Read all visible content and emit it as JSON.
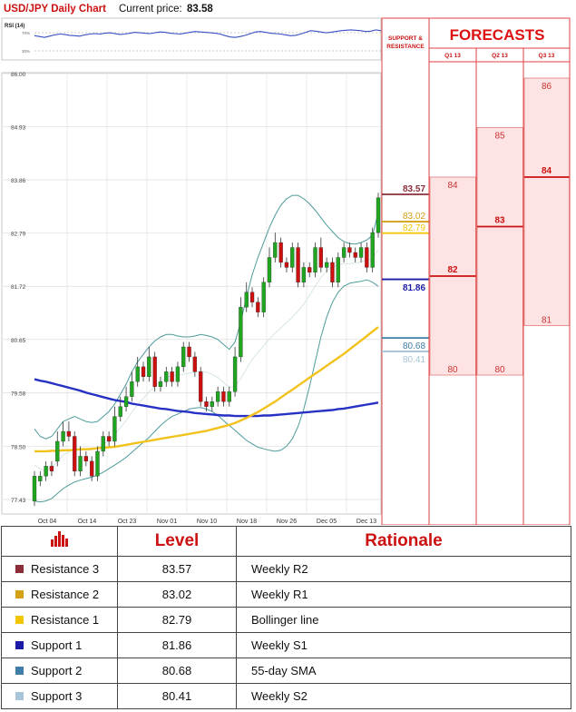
{
  "header": {
    "title": "USD/JPY Daily Chart",
    "current_label": "Current price:",
    "current_value": "83.58"
  },
  "rsi": {
    "label": "RSI (14)",
    "levels": [
      "70%",
      "30%"
    ],
    "values": [
      58,
      56,
      54,
      57,
      60,
      62,
      61,
      59,
      58,
      57,
      60,
      62,
      63,
      62,
      64,
      65,
      63,
      61,
      62,
      64,
      66,
      65,
      64,
      63,
      65,
      67,
      66,
      64,
      63,
      62,
      64,
      66,
      68,
      67,
      66,
      65,
      64,
      62,
      58,
      55,
      54,
      56,
      59,
      63,
      67,
      68,
      66,
      64,
      63,
      62,
      60,
      58,
      59,
      62,
      66,
      70,
      69,
      67,
      65,
      66,
      68,
      70,
      71,
      72,
      71,
      70,
      68,
      69,
      72,
      70
    ]
  },
  "forecasts": {
    "title": "FORECASTS",
    "sr_label": [
      "SUPPORT &",
      "RESISTANCE"
    ],
    "columns": [
      {
        "label": "Q1 13",
        "high": 84,
        "mid": 82,
        "low": 80
      },
      {
        "label": "Q2 13",
        "high": 85,
        "mid": 83,
        "low": 80
      },
      {
        "label": "Q3 13",
        "high": 86,
        "mid": 84,
        "low": 81
      }
    ]
  },
  "chart_data": {
    "type": "candlestick",
    "title": "USD/JPY Daily Chart",
    "y_ticks": [
      "86.00",
      "84.93",
      "83.86",
      "82.79",
      "81.72",
      "80.65",
      "79.58",
      "78.50",
      "77.43"
    ],
    "y_range": [
      77.43,
      86.0
    ],
    "x_ticks": [
      "Oct 04",
      "Oct 14",
      "Oct 23",
      "Nov 01",
      "Nov 10",
      "Nov 18",
      "Nov 26",
      "Dec 05",
      "Dec 13"
    ],
    "candles": [
      [
        77.4,
        77.9,
        77.3,
        78.0
      ],
      [
        77.8,
        77.9,
        77.7,
        78.0
      ],
      [
        77.9,
        78.1,
        77.8,
        78.2
      ],
      [
        78.1,
        78.0,
        77.9,
        78.2
      ],
      [
        78.2,
        78.6,
        78.1,
        78.8
      ],
      [
        78.6,
        78.8,
        78.5,
        79.0
      ],
      [
        78.8,
        78.7,
        78.6,
        79.0
      ],
      [
        78.7,
        78.0,
        77.9,
        78.8
      ],
      [
        78.0,
        78.3,
        77.9,
        78.5
      ],
      [
        78.3,
        78.2,
        78.1,
        78.4
      ],
      [
        78.2,
        77.9,
        77.8,
        78.3
      ],
      [
        77.9,
        78.4,
        77.8,
        78.5
      ],
      [
        78.4,
        78.7,
        78.3,
        78.8
      ],
      [
        78.7,
        78.6,
        78.5,
        78.8
      ],
      [
        78.6,
        79.1,
        78.5,
        79.3
      ],
      [
        79.1,
        79.3,
        79.0,
        79.5
      ],
      [
        79.3,
        79.5,
        79.2,
        79.7
      ],
      [
        79.5,
        79.8,
        79.4,
        80.0
      ],
      [
        79.8,
        80.1,
        79.7,
        80.3
      ],
      [
        80.1,
        79.9,
        79.8,
        80.2
      ],
      [
        79.9,
        80.3,
        79.8,
        80.5
      ],
      [
        80.3,
        79.7,
        79.6,
        80.4
      ],
      [
        79.7,
        79.8,
        79.6,
        79.9
      ],
      [
        79.8,
        80.0,
        79.7,
        80.1
      ],
      [
        80.0,
        79.8,
        79.7,
        80.1
      ],
      [
        79.8,
        80.1,
        79.7,
        80.2
      ],
      [
        80.1,
        80.5,
        80.0,
        80.6
      ],
      [
        80.5,
        80.3,
        80.2,
        80.6
      ],
      [
        80.3,
        80.0,
        79.9,
        80.4
      ],
      [
        80.0,
        79.4,
        79.3,
        80.1
      ],
      [
        79.4,
        79.3,
        79.2,
        79.5
      ],
      [
        79.3,
        79.4,
        79.2,
        79.5
      ],
      [
        79.4,
        79.6,
        79.3,
        79.7
      ],
      [
        79.6,
        79.4,
        79.3,
        79.7
      ],
      [
        79.4,
        79.6,
        79.3,
        79.7
      ],
      [
        79.6,
        80.3,
        79.5,
        80.5
      ],
      [
        80.3,
        81.3,
        80.2,
        81.5
      ],
      [
        81.3,
        81.6,
        81.2,
        81.8
      ],
      [
        81.6,
        81.4,
        81.3,
        81.7
      ],
      [
        81.4,
        81.2,
        81.1,
        81.5
      ],
      [
        81.2,
        81.8,
        81.1,
        81.9
      ],
      [
        81.8,
        82.3,
        81.7,
        82.5
      ],
      [
        82.3,
        82.6,
        82.2,
        82.8
      ],
      [
        82.6,
        82.2,
        82.1,
        82.7
      ],
      [
        82.2,
        82.1,
        82.0,
        82.3
      ],
      [
        82.1,
        82.5,
        82.0,
        82.6
      ],
      [
        82.5,
        81.8,
        81.7,
        82.6
      ],
      [
        81.8,
        82.1,
        81.7,
        82.2
      ],
      [
        82.1,
        82.0,
        81.9,
        82.2
      ],
      [
        82.0,
        82.5,
        81.9,
        82.6
      ],
      [
        82.5,
        82.1,
        82.0,
        82.7
      ],
      [
        82.1,
        82.2,
        82.0,
        82.3
      ],
      [
        82.2,
        81.8,
        81.7,
        82.3
      ],
      [
        81.8,
        82.3,
        81.7,
        82.4
      ],
      [
        82.3,
        82.5,
        82.2,
        82.6
      ],
      [
        82.5,
        82.4,
        82.3,
        82.6
      ],
      [
        82.4,
        82.3,
        82.2,
        82.5
      ],
      [
        82.3,
        82.5,
        82.2,
        82.6
      ],
      [
        82.5,
        82.1,
        82.0,
        82.6
      ],
      [
        82.1,
        82.8,
        82.0,
        82.9
      ],
      [
        82.8,
        83.5,
        82.7,
        83.6
      ]
    ],
    "sma_100": [
      79.85,
      79.82,
      79.8,
      79.77,
      79.74,
      79.71,
      79.68,
      79.65,
      79.62,
      79.58,
      79.55,
      79.52,
      79.49,
      79.46,
      79.43,
      79.41,
      79.39,
      79.36,
      79.34,
      79.32,
      79.3,
      79.28,
      79.26,
      79.25,
      79.23,
      79.21,
      79.2,
      79.19,
      79.17,
      79.16,
      79.15,
      79.14,
      79.13,
      79.12,
      79.12,
      79.11,
      79.11,
      79.11,
      79.11,
      79.11,
      79.12,
      79.12,
      79.13,
      79.14,
      79.15,
      79.16,
      79.17,
      79.18,
      79.19,
      79.2,
      79.21,
      79.22,
      79.23,
      79.25,
      79.26,
      79.28,
      79.3,
      79.32,
      79.34,
      79.36,
      79.38
    ],
    "sma_55": [
      78.4,
      78.4,
      78.4,
      78.41,
      78.41,
      78.42,
      78.42,
      78.43,
      78.44,
      78.44,
      78.45,
      78.46,
      78.47,
      78.48,
      78.49,
      78.51,
      78.53,
      78.55,
      78.57,
      78.59,
      78.61,
      78.63,
      78.65,
      78.67,
      78.69,
      78.71,
      78.73,
      78.75,
      78.77,
      78.79,
      78.81,
      78.84,
      78.87,
      78.9,
      78.93,
      78.97,
      79.02,
      79.07,
      79.13,
      79.19,
      79.26,
      79.33,
      79.4,
      79.48,
      79.56,
      79.64,
      79.72,
      79.8,
      79.88,
      79.96,
      80.04,
      80.12,
      80.2,
      80.28,
      80.36,
      80.45,
      80.54,
      80.63,
      80.72,
      80.81,
      80.9
    ],
    "bollinger_upper": [
      78.85,
      78.7,
      78.65,
      78.7,
      78.85,
      79.0,
      79.05,
      79.1,
      79.05,
      79.0,
      78.98,
      79.0,
      79.1,
      79.2,
      79.35,
      79.55,
      79.75,
      80.0,
      80.2,
      80.35,
      80.5,
      80.62,
      80.7,
      80.75,
      80.75,
      80.72,
      80.7,
      80.7,
      80.72,
      80.75,
      80.73,
      80.7,
      80.65,
      80.55,
      80.45,
      80.6,
      81.0,
      81.5,
      81.95,
      82.3,
      82.6,
      82.9,
      83.15,
      83.35,
      83.48,
      83.55,
      83.55,
      83.48,
      83.38,
      83.25,
      83.1,
      82.95,
      82.82,
      82.7,
      82.62,
      82.58,
      82.57,
      82.6,
      82.65,
      82.75,
      83.2
    ],
    "bollinger_lower": [
      77.4,
      77.38,
      77.4,
      77.45,
      77.55,
      77.65,
      77.72,
      77.78,
      77.82,
      77.85,
      77.88,
      77.92,
      77.98,
      78.05,
      78.12,
      78.2,
      78.28,
      78.38,
      78.48,
      78.58,
      78.68,
      78.8,
      78.92,
      79.02,
      79.1,
      79.15,
      79.2,
      79.25,
      79.27,
      79.28,
      79.25,
      79.2,
      79.12,
      79.02,
      78.92,
      78.82,
      78.72,
      78.62,
      78.55,
      78.48,
      78.45,
      78.42,
      78.4,
      78.42,
      78.5,
      78.65,
      78.9,
      79.25,
      79.7,
      80.2,
      80.7,
      81.1,
      81.4,
      81.6,
      81.72,
      81.78,
      81.8,
      81.82,
      81.85,
      81.8,
      81.72
    ],
    "levels": [
      {
        "name": "Resistance 3",
        "value": "83.57",
        "color": "#8b2e3a"
      },
      {
        "name": "Resistance 2",
        "value": "83.02",
        "color": "#d4a017"
      },
      {
        "name": "Resistance 1",
        "value": "82.79",
        "color": "#f5c400"
      },
      {
        "name": "Support 1",
        "value": "81.86",
        "color": "#1a1aa6"
      },
      {
        "name": "Support 2",
        "value": "80.68",
        "color": "#3f7ea8"
      },
      {
        "name": "Support 3",
        "value": "80.41",
        "color": "#a7c4d8"
      }
    ]
  },
  "table": {
    "headers": [
      "",
      "Level",
      "Rationale"
    ],
    "rows": [
      {
        "name": "Resistance 3",
        "level": "83.57",
        "rationale": "Weekly R2",
        "color": "#8b2e3a"
      },
      {
        "name": "Resistance 2",
        "level": "83.02",
        "rationale": "Weekly R1",
        "color": "#d4a017"
      },
      {
        "name": "Resistance 1",
        "level": "82.79",
        "rationale": "Bollinger line",
        "color": "#f5c400"
      },
      {
        "name": "Support 1",
        "level": "81.86",
        "rationale": "Weekly S1",
        "color": "#1a1aa6"
      },
      {
        "name": "Support 2",
        "level": "80.68",
        "rationale": "55-day SMA",
        "color": "#3f7ea8"
      },
      {
        "name": "Support 3",
        "level": "80.41",
        "rationale": "Weekly S2",
        "color": "#a7c4d8"
      }
    ]
  }
}
